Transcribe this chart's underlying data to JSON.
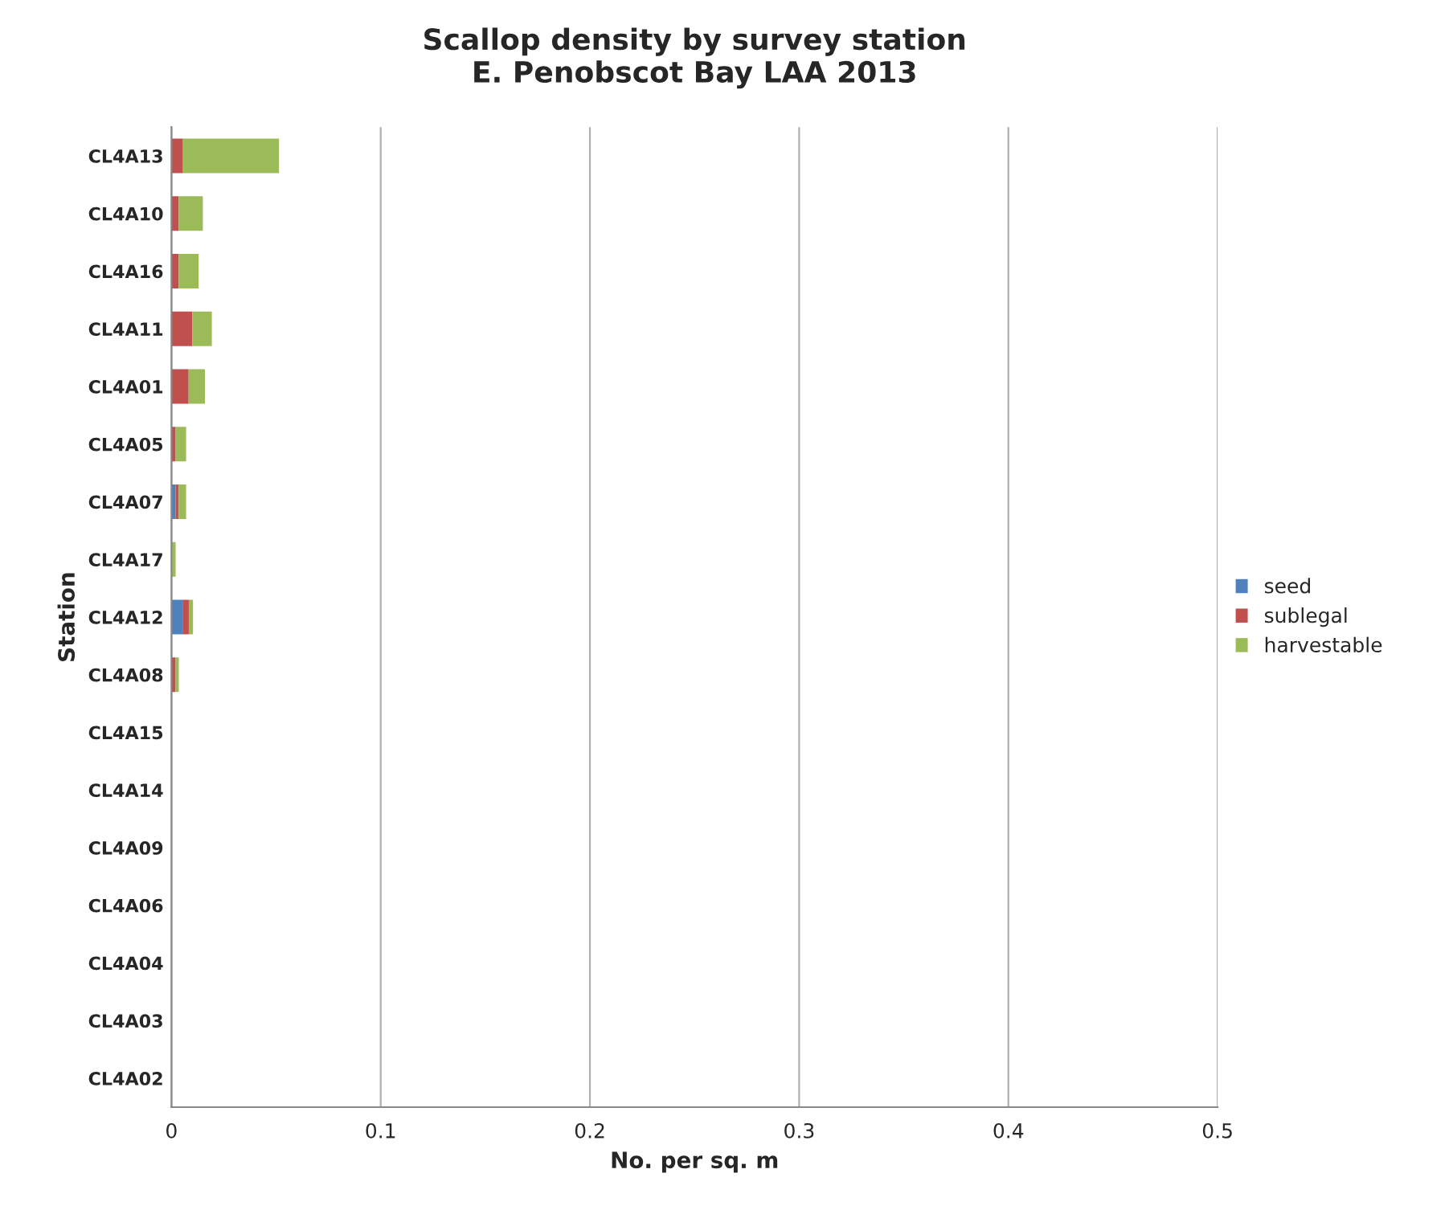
{
  "chart_data": {
    "type": "bar",
    "orientation": "horizontal",
    "stacked": true,
    "title": "Scallop density by survey station\nE. Penobscot Bay LAA 2013",
    "xlabel": "No. per sq. m",
    "ylabel": "Station",
    "categories": [
      "CL4A13",
      "CL4A10",
      "CL4A16",
      "CL4A11",
      "CL4A01",
      "CL4A05",
      "CL4A07",
      "CL4A17",
      "CL4A12",
      "CL4A08",
      "CL4A15",
      "CL4A14",
      "CL4A09",
      "CL4A06",
      "CL4A04",
      "CL4A03",
      "CL4A02"
    ],
    "series": [
      {
        "name": "seed",
        "color": "#4f81bd",
        "values": [
          0,
          0,
          0,
          0,
          0,
          0,
          0.002,
          0,
          0.0053,
          0,
          0,
          0,
          0,
          0,
          0,
          0,
          0
        ]
      },
      {
        "name": "sublegal",
        "color": "#c0504d",
        "values": [
          0.0055,
          0.0035,
          0.0035,
          0.01,
          0.0082,
          0.002,
          0.0015,
          0,
          0.003,
          0.002,
          0,
          0,
          0,
          0,
          0,
          0,
          0
        ]
      },
      {
        "name": "harvestable",
        "color": "#9bbb59",
        "values": [
          0.0459,
          0.0115,
          0.0095,
          0.0093,
          0.0078,
          0.005,
          0.0035,
          0.002,
          0.002,
          0.0015,
          0,
          0,
          0,
          0,
          0,
          0,
          0
        ]
      }
    ],
    "xlim": [
      0,
      0.5
    ],
    "xticks": [
      0,
      0.1,
      0.2,
      0.3,
      0.4,
      0.5
    ],
    "grid": "x",
    "legend": "right"
  }
}
